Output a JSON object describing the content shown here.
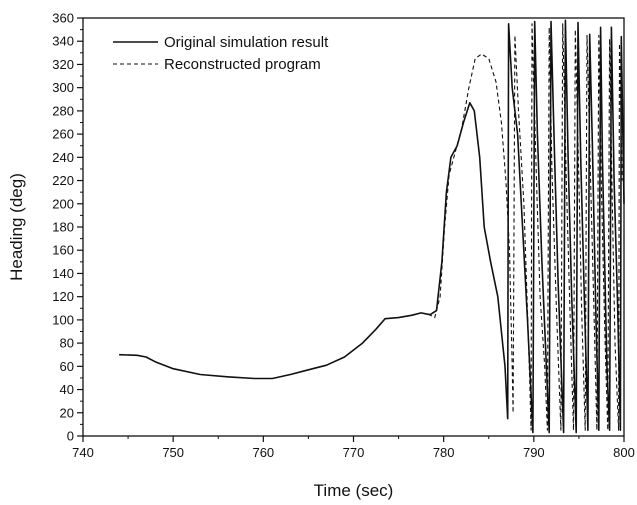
{
  "chart_data": {
    "type": "line",
    "title": "",
    "xlabel": "Time (sec)",
    "ylabel": "Heading (deg)",
    "xlim": [
      740,
      800
    ],
    "ylim": [
      0,
      360
    ],
    "x_ticks": [
      740,
      750,
      760,
      770,
      780,
      790,
      800
    ],
    "y_ticks": [
      0,
      20,
      40,
      60,
      80,
      100,
      120,
      140,
      160,
      180,
      200,
      220,
      240,
      260,
      280,
      300,
      320,
      340,
      360
    ],
    "grid": false,
    "legend_position": "top-left",
    "colors": {
      "line": "#111111",
      "axis": "#111111"
    },
    "series": [
      {
        "name": "Original simulation result",
        "style": "solid",
        "points": [
          [
            744,
            70
          ],
          [
            746,
            69.5
          ],
          [
            747,
            68
          ],
          [
            748,
            64
          ],
          [
            750,
            58
          ],
          [
            753,
            53
          ],
          [
            756,
            51
          ],
          [
            759,
            49.5
          ],
          [
            761,
            49.5
          ],
          [
            763,
            53
          ],
          [
            765,
            57
          ],
          [
            767,
            61
          ],
          [
            769,
            68
          ],
          [
            771,
            80
          ],
          [
            772.5,
            92
          ],
          [
            773.5,
            101
          ],
          [
            775,
            102
          ],
          [
            776.5,
            104
          ],
          [
            777.5,
            106
          ],
          [
            778.5,
            104.5
          ],
          [
            779.2,
            108
          ],
          [
            779.8,
            150
          ],
          [
            780.3,
            210
          ],
          [
            780.8,
            240
          ],
          [
            781.5,
            250
          ],
          [
            782.2,
            270
          ],
          [
            782.9,
            287
          ],
          [
            783.4,
            280
          ],
          [
            784,
            240
          ],
          [
            784.5,
            180
          ],
          [
            785.2,
            150
          ],
          [
            786,
            120
          ],
          [
            786.8,
            60
          ],
          [
            787.1,
            15
          ],
          [
            787.2,
            355
          ],
          [
            787.6,
            300
          ],
          [
            788.2,
            260
          ],
          [
            789.3,
            100
          ],
          [
            789.9,
            3
          ],
          [
            790.1,
            357
          ],
          [
            790.4,
            260
          ],
          [
            790.9,
            150
          ],
          [
            791.7,
            3
          ],
          [
            791.9,
            357
          ],
          [
            792.3,
            240
          ],
          [
            792.7,
            130
          ],
          [
            793.3,
            3
          ],
          [
            793.5,
            358
          ],
          [
            793.8,
            240
          ],
          [
            794.2,
            120
          ],
          [
            794.7,
            3
          ],
          [
            794.9,
            356
          ],
          [
            795.2,
            240
          ],
          [
            795.6,
            120
          ],
          [
            796,
            5
          ],
          [
            796.2,
            346
          ],
          [
            796.5,
            250
          ],
          [
            796.9,
            100
          ],
          [
            797.2,
            5
          ],
          [
            797.4,
            352
          ],
          [
            797.6,
            240
          ],
          [
            798.1,
            60
          ],
          [
            798.4,
            5
          ],
          [
            798.6,
            352
          ],
          [
            798.9,
            220
          ],
          [
            799.3,
            110
          ],
          [
            799.6,
            5
          ],
          [
            799.7,
            344
          ],
          [
            800,
            200
          ]
        ]
      },
      {
        "name": "Reconstructed program",
        "style": "dashed",
        "points": [
          [
            778.3,
            105
          ],
          [
            779,
            102
          ],
          [
            779.6,
            120
          ],
          [
            780.1,
            180
          ],
          [
            780.6,
            225
          ],
          [
            781.3,
            245
          ],
          [
            782,
            265
          ],
          [
            782.8,
            300
          ],
          [
            783.5,
            325
          ],
          [
            784.2,
            329
          ],
          [
            785,
            325
          ],
          [
            785.8,
            305
          ],
          [
            786.4,
            270
          ],
          [
            786.9,
            220
          ],
          [
            787.3,
            160
          ],
          [
            787.6,
            60
          ],
          [
            787.7,
            20
          ],
          [
            787.9,
            345
          ],
          [
            788.3,
            280
          ],
          [
            788.9,
            200
          ],
          [
            789.5,
            60
          ],
          [
            789.7,
            5
          ],
          [
            789.8,
            355
          ],
          [
            790.3,
            220
          ],
          [
            790.7,
            120
          ],
          [
            791.2,
            60
          ],
          [
            791.5,
            5
          ],
          [
            791.7,
            352
          ],
          [
            792,
            230
          ],
          [
            792.5,
            110
          ],
          [
            793,
            5
          ],
          [
            793.2,
            355
          ],
          [
            793.6,
            220
          ],
          [
            794,
            110
          ],
          [
            794.4,
            5
          ],
          [
            794.6,
            350
          ],
          [
            795,
            220
          ],
          [
            795.3,
            110
          ],
          [
            795.7,
            5
          ],
          [
            795.9,
            345
          ],
          [
            796.3,
            220
          ],
          [
            796.7,
            100
          ],
          [
            797,
            5
          ],
          [
            797.2,
            345
          ],
          [
            797.5,
            210
          ],
          [
            797.9,
            80
          ],
          [
            798.2,
            5
          ],
          [
            798.4,
            342
          ],
          [
            798.7,
            200
          ],
          [
            799,
            80
          ],
          [
            799.4,
            5
          ],
          [
            799.5,
            338
          ],
          [
            799.8,
            220
          ]
        ]
      }
    ]
  }
}
